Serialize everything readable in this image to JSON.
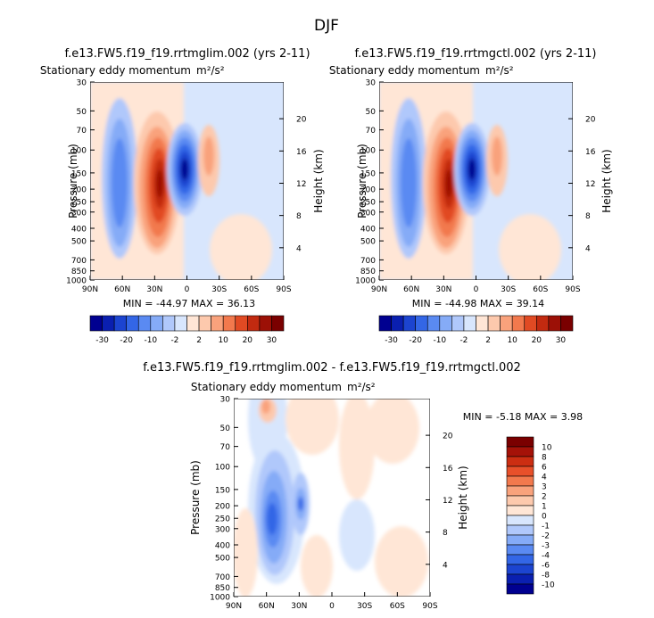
{
  "page_title": "DJF",
  "panels": [
    {
      "title": "f.e13.FW5.f19_f19.rrtmglim.002 (yrs 2-11)",
      "subtitle": "Stationary eddy momentum",
      "units": "m²/s²",
      "stats": "MIN = -44.97   MAX =  36.13"
    },
    {
      "title": "f.e13.FW5.f19_f19.rrtmgctl.002 (yrs 2-11)",
      "subtitle": "Stationary eddy momentum",
      "units": "m²/s²",
      "stats": "MIN = -44.98   MAX =  39.14"
    },
    {
      "title": "f.e13.FW5.f19_f19.rrtmglim.002 - f.e13.FW5.f19_f19.rrtmgctl.002",
      "subtitle": "Stationary eddy momentum",
      "units": "m²/s²",
      "stats": "MIN =  -5.18  MAX =   3.98"
    }
  ],
  "axes": {
    "ylabel_left": "Pressure (mb)",
    "ylabel_right": "Height (km)",
    "pressure_ticks": [
      "30",
      "50",
      "70",
      "100",
      "150",
      "200",
      "250",
      "300",
      "400",
      "500",
      "700",
      "850",
      "1000"
    ],
    "height_ticks": [
      "20",
      "16",
      "12",
      "8",
      "4"
    ],
    "lat_ticks": [
      "90N",
      "60N",
      "30N",
      "0",
      "30S",
      "60S",
      "90S"
    ]
  },
  "colorbar_full": {
    "labels": [
      "-30",
      "-20",
      "-10",
      "-2",
      "2",
      "10",
      "20",
      "30"
    ],
    "colors": [
      "#000090",
      "#0a1fb0",
      "#1c44d0",
      "#3366e6",
      "#5a8af2",
      "#85abf7",
      "#b0c8fb",
      "#d8e6fd",
      "#ffe6d6",
      "#fdc9ad",
      "#f9a27c",
      "#f2794d",
      "#e14a23",
      "#c22a10",
      "#9c1006",
      "#7a0000"
    ]
  },
  "colorbar_diff": {
    "labels": [
      "10",
      "8",
      "6",
      "4",
      "3",
      "2",
      "1",
      "0",
      "-1",
      "-2",
      "-3",
      "-4",
      "-6",
      "-8",
      "-10"
    ],
    "colors": [
      "#7a0000",
      "#a51208",
      "#cc2e12",
      "#e8502a",
      "#f2794d",
      "#f9a27c",
      "#fdc9ad",
      "#ffe6d6",
      "#d8e6fd",
      "#b0c8fb",
      "#85abf7",
      "#5a8af2",
      "#3366e6",
      "#1c44d0",
      "#0a1fb0",
      "#000090"
    ]
  },
  "chart_data": [
    {
      "type": "heatmap",
      "title": "f.e13.FW5.f19_f19.rrtmglim.002 (yrs 2-11)",
      "subtitle": "Stationary eddy momentum m²/s²",
      "xlabel": "",
      "ylabel": "Pressure (mb)",
      "ylabel_right": "Height (km)",
      "x_ticks": [
        "90N",
        "60N",
        "30N",
        "0",
        "30S",
        "60S",
        "90S"
      ],
      "y_ticks": [
        30,
        50,
        70,
        100,
        150,
        200,
        250,
        300,
        400,
        500,
        700,
        850,
        1000
      ],
      "y_scale": "log",
      "xlim": [
        90,
        -90
      ],
      "ylim": [
        1000,
        30
      ],
      "min": -44.97,
      "max": 36.13,
      "features": [
        {
          "lat": 55,
          "p": 180,
          "value": -20
        },
        {
          "lat": 23,
          "p": 220,
          "value": 33
        },
        {
          "lat": 3,
          "p": 140,
          "value": -44
        }
      ]
    },
    {
      "type": "heatmap",
      "title": "f.e13.FW5.f19_f19.rrtmgctl.002 (yrs 2-11)",
      "subtitle": "Stationary eddy momentum m²/s²",
      "xlabel": "",
      "ylabel": "Pressure (mb)",
      "ylabel_right": "Height (km)",
      "x_ticks": [
        "90N",
        "60N",
        "30N",
        "0",
        "30S",
        "60S",
        "90S"
      ],
      "y_ticks": [
        30,
        50,
        70,
        100,
        150,
        200,
        250,
        300,
        400,
        500,
        700,
        850,
        1000
      ],
      "y_scale": "log",
      "xlim": [
        90,
        -90
      ],
      "ylim": [
        1000,
        30
      ],
      "min": -44.98,
      "max": 39.14,
      "features": [
        {
          "lat": 55,
          "p": 180,
          "value": -20
        },
        {
          "lat": 23,
          "p": 220,
          "value": 36
        },
        {
          "lat": 3,
          "p": 140,
          "value": -44
        }
      ]
    },
    {
      "type": "heatmap",
      "title": "f.e13.FW5.f19_f19.rrtmglim.002 - f.e13.FW5.f19_f19.rrtmgctl.002",
      "subtitle": "Stationary eddy momentum m²/s²",
      "xlabel": "",
      "ylabel": "Pressure (mb)",
      "ylabel_right": "Height (km)",
      "x_ticks": [
        "90N",
        "60N",
        "30N",
        "0",
        "30S",
        "60S",
        "90S"
      ],
      "y_ticks": [
        30,
        50,
        70,
        100,
        150,
        200,
        250,
        300,
        400,
        500,
        700,
        850,
        1000
      ],
      "y_scale": "log",
      "xlim": [
        90,
        -90
      ],
      "ylim": [
        1000,
        30
      ],
      "min": -5.18,
      "max": 3.98,
      "features": [
        {
          "lat": 48,
          "p": 250,
          "value": -5
        },
        {
          "lat": 25,
          "p": 200,
          "value": -3
        },
        {
          "lat": 60,
          "p": 35,
          "value": 3
        },
        {
          "lat": 80,
          "p": 500,
          "value": 1
        }
      ]
    }
  ]
}
